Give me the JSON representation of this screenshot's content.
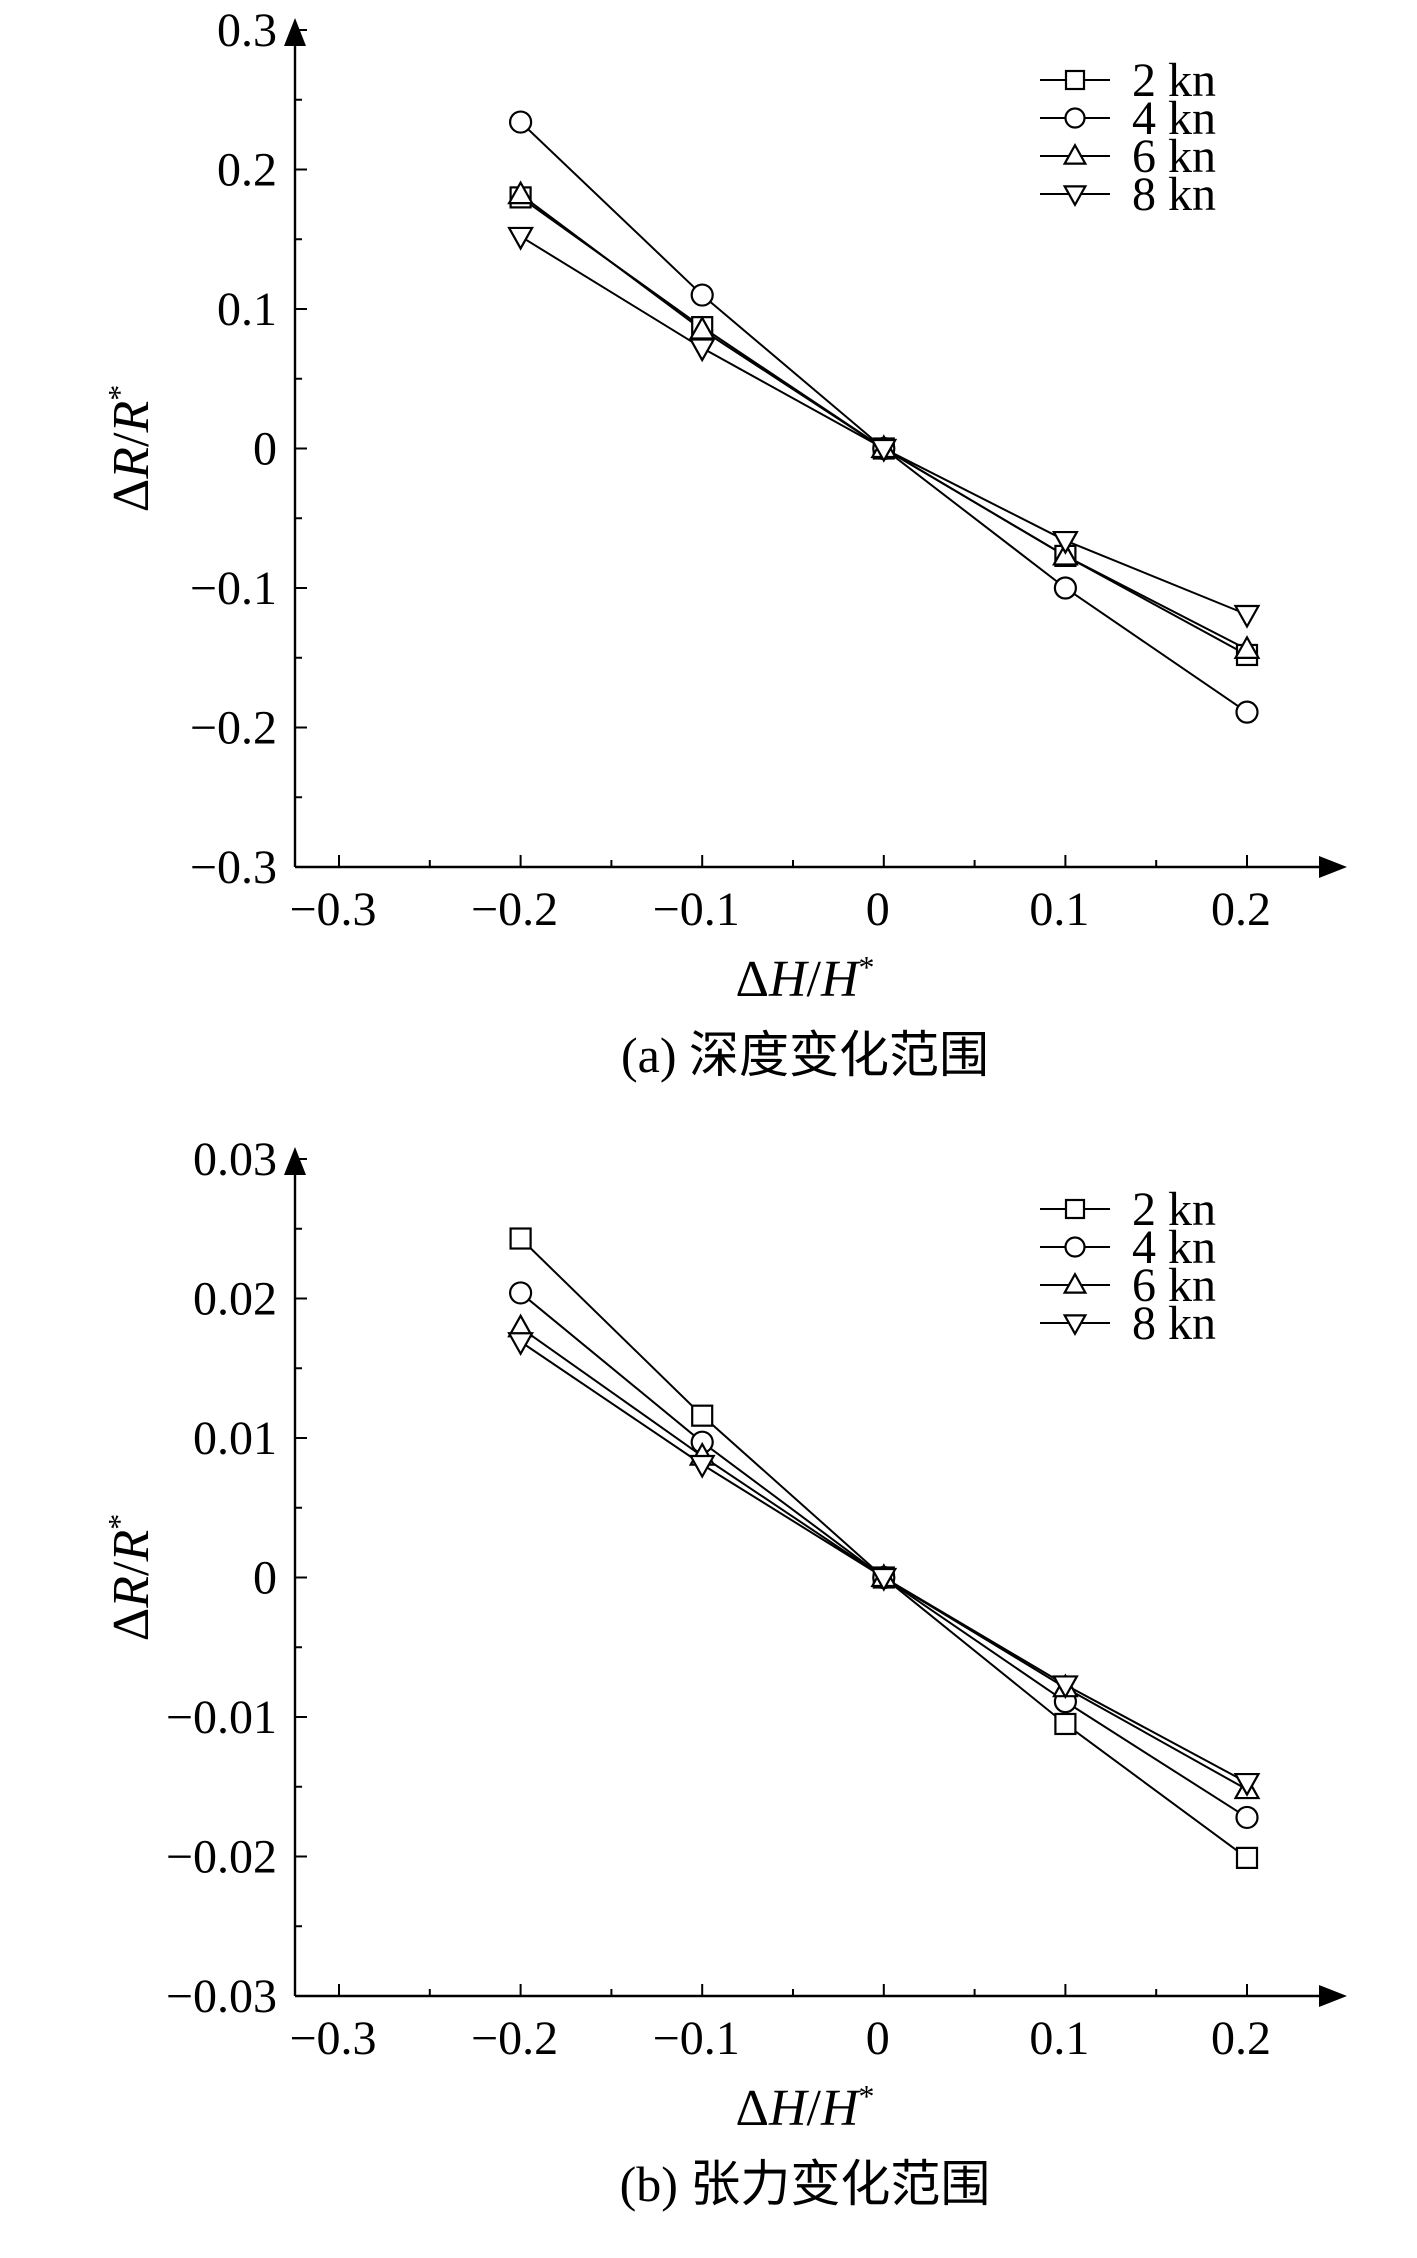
{
  "chart_data": [
    {
      "type": "line",
      "caption": "(a) 深度变化范围",
      "xlabel": "ΔH/H*",
      "ylabel": "ΔR/R*",
      "x": [
        -0.2,
        -0.1,
        0,
        0.1,
        0.2
      ],
      "xlim": [
        -0.3,
        0.2
      ],
      "ylim": [
        -0.3,
        0.3
      ],
      "xticks": [
        -0.3,
        -0.2,
        -0.1,
        0,
        0.1,
        0.2
      ],
      "xtick_labels": [
        "−0.3",
        "−0.2",
        "−0.1",
        "0",
        "0.1",
        "0.2"
      ],
      "yticks": [
        -0.3,
        -0.2,
        -0.1,
        0,
        0.1,
        0.2,
        0.3
      ],
      "ytick_labels": [
        "−0.3",
        "−0.2",
        "−0.1",
        "0",
        "0.1",
        "0.2",
        "0.3"
      ],
      "grid": false,
      "legend_position": "top-right",
      "series": [
        {
          "name": "2 kn",
          "marker": "square",
          "values": [
            0.18,
            0.087,
            0,
            -0.077,
            -0.148
          ]
        },
        {
          "name": "4 kn",
          "marker": "circle",
          "values": [
            0.234,
            0.11,
            0,
            -0.1,
            -0.189
          ]
        },
        {
          "name": "6 kn",
          "marker": "triangle-up",
          "values": [
            0.182,
            0.085,
            0,
            -0.077,
            -0.144
          ]
        },
        {
          "name": "8 kn",
          "marker": "triangle-down",
          "values": [
            0.152,
            0.072,
            0,
            -0.066,
            -0.119
          ]
        }
      ]
    },
    {
      "type": "line",
      "caption": "(b) 张力变化范围",
      "xlabel": "ΔH/H*",
      "ylabel": "ΔR/R*",
      "x": [
        -0.2,
        -0.1,
        0,
        0.1,
        0.2
      ],
      "xlim": [
        -0.3,
        0.2
      ],
      "ylim": [
        -0.03,
        0.03
      ],
      "xticks": [
        -0.3,
        -0.2,
        -0.1,
        0,
        0.1,
        0.2
      ],
      "xtick_labels": [
        "−0.3",
        "−0.2",
        "−0.1",
        "0",
        "0.1",
        "0.2"
      ],
      "yticks": [
        -0.03,
        -0.02,
        -0.01,
        0,
        0.01,
        0.02,
        0.03
      ],
      "ytick_labels": [
        "−0.03",
        "−0.02",
        "−0.01",
        "0",
        "0.01",
        "0.02",
        "0.03"
      ],
      "grid": false,
      "legend_position": "top-right",
      "series": [
        {
          "name": "2 kn",
          "marker": "square",
          "values": [
            0.0243,
            0.0116,
            0,
            -0.0105,
            -0.0201
          ]
        },
        {
          "name": "4 kn",
          "marker": "circle",
          "values": [
            0.0204,
            0.0097,
            0,
            -0.0089,
            -0.0172
          ]
        },
        {
          "name": "6 kn",
          "marker": "triangle-up",
          "values": [
            0.0179,
            0.0087,
            0,
            -0.0079,
            -0.0152
          ]
        },
        {
          "name": "8 kn",
          "marker": "triangle-down",
          "values": [
            0.0169,
            0.0081,
            0,
            -0.0077,
            -0.0147
          ]
        }
      ]
    }
  ],
  "colors": {
    "ink": "#000000",
    "background": "#ffffff"
  }
}
